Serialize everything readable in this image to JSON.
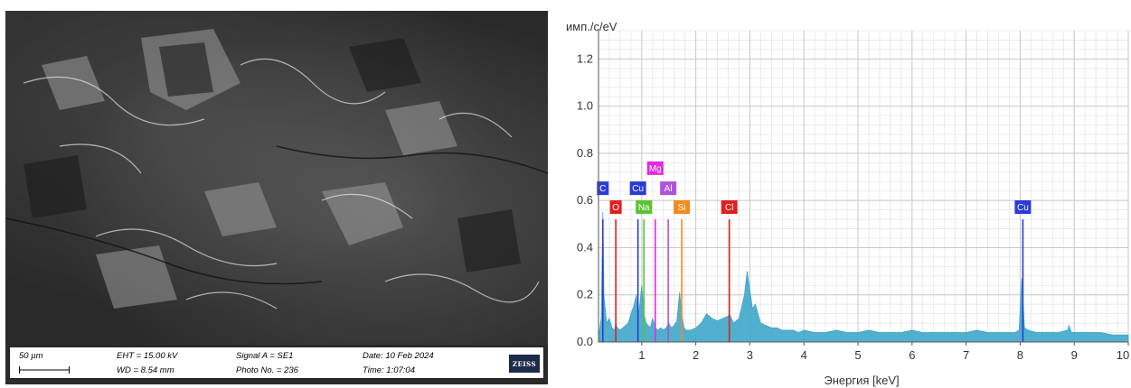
{
  "sem_panel": {
    "scale_label": "50 µm",
    "eht": "EHT = 15.00 kV",
    "wd": "WD = 8.54 mm",
    "signal": "Signal A = SE1",
    "photo_no": "Photo No. = 236",
    "date": "Date: 10 Feb 2024",
    "time": "Time: 1:07:04",
    "logo_text": "ZEISS"
  },
  "chart_data": {
    "type": "area",
    "ylabel": "имп./c/eV",
    "xlabel": "Энергия [keV]",
    "xlim": [
      0.2,
      10
    ],
    "ylim": [
      0,
      1.32
    ],
    "x_ticks": [
      1,
      2,
      3,
      4,
      5,
      6,
      7,
      8,
      9,
      10
    ],
    "x_tick_labels": [
      "1",
      "2",
      "3",
      "4",
      "5",
      "6",
      "7",
      "8",
      "9",
      "10"
    ],
    "y_ticks": [
      0.0,
      0.2,
      0.4,
      0.6,
      0.8,
      1.0,
      1.2
    ],
    "y_tick_labels": [
      "0.0",
      "0.2",
      "0.4",
      "0.6",
      "0.8",
      "1.0",
      "1.2"
    ],
    "grid": true,
    "spectrum_color": "#3fa7c9",
    "series": [
      {
        "x": [
          0.2,
          0.25,
          0.28,
          0.3,
          0.35,
          0.4,
          0.45,
          0.5,
          0.52,
          0.55,
          0.6,
          0.65,
          0.7,
          0.75,
          0.8,
          0.85,
          0.9,
          0.93,
          0.96,
          1.0,
          1.04,
          1.08,
          1.12,
          1.16,
          1.2,
          1.25,
          1.3,
          1.35,
          1.4,
          1.45,
          1.5,
          1.55,
          1.6,
          1.65,
          1.7,
          1.74,
          1.78,
          1.82,
          1.9,
          2.0,
          2.1,
          2.2,
          2.3,
          2.4,
          2.5,
          2.6,
          2.62,
          2.7,
          2.8,
          2.9,
          2.95,
          3.0,
          3.05,
          3.1,
          3.15,
          3.2,
          3.3,
          3.4,
          3.5,
          3.6,
          3.7,
          3.8,
          3.9,
          4.0,
          4.2,
          4.4,
          4.6,
          4.8,
          5.0,
          5.2,
          5.4,
          5.6,
          5.8,
          6.0,
          6.2,
          6.4,
          6.6,
          6.8,
          7.0,
          7.2,
          7.4,
          7.6,
          7.8,
          7.9,
          7.98,
          8.03,
          8.08,
          8.15,
          8.3,
          8.5,
          8.7,
          8.88,
          8.9,
          8.95,
          9.1,
          9.3,
          9.5,
          9.7,
          9.9,
          10.0
        ],
        "y": [
          0.02,
          0.1,
          0.55,
          0.2,
          0.08,
          0.1,
          0.06,
          0.05,
          0.08,
          0.06,
          0.05,
          0.06,
          0.07,
          0.08,
          0.12,
          0.15,
          0.2,
          0.1,
          0.15,
          0.24,
          0.12,
          0.08,
          0.07,
          0.06,
          0.1,
          0.06,
          0.05,
          0.06,
          0.05,
          0.06,
          0.08,
          0.06,
          0.07,
          0.09,
          0.21,
          0.12,
          0.06,
          0.05,
          0.05,
          0.06,
          0.08,
          0.12,
          0.1,
          0.09,
          0.1,
          0.11,
          0.12,
          0.08,
          0.1,
          0.2,
          0.3,
          0.22,
          0.14,
          0.16,
          0.12,
          0.08,
          0.07,
          0.06,
          0.06,
          0.05,
          0.05,
          0.05,
          0.04,
          0.05,
          0.04,
          0.04,
          0.05,
          0.04,
          0.04,
          0.05,
          0.04,
          0.04,
          0.04,
          0.05,
          0.04,
          0.04,
          0.04,
          0.04,
          0.04,
          0.05,
          0.04,
          0.04,
          0.04,
          0.04,
          0.05,
          0.27,
          0.06,
          0.05,
          0.04,
          0.04,
          0.04,
          0.05,
          0.07,
          0.04,
          0.04,
          0.04,
          0.04,
          0.03,
          0.03,
          0.03
        ]
      }
    ],
    "element_lines": [
      {
        "label": "C",
        "x": 0.28,
        "color": "#2b3bd6",
        "label_row": 2
      },
      {
        "label": "O",
        "x": 0.52,
        "color": "#e02020",
        "label_row": 1
      },
      {
        "label": "Cu",
        "x": 0.93,
        "color": "#2b3bd6",
        "label_row": 2
      },
      {
        "label": "Na",
        "x": 1.04,
        "color": "#5bc234",
        "label_row": 1
      },
      {
        "label": "Mg",
        "x": 1.25,
        "color": "#e02ae0",
        "label_row": 3
      },
      {
        "label": "Al",
        "x": 1.49,
        "color": "#b052e0",
        "label_row": 2
      },
      {
        "label": "Si",
        "x": 1.74,
        "color": "#f08c1e",
        "label_row": 1
      },
      {
        "label": "Cl",
        "x": 2.62,
        "color": "#e02020",
        "label_row": 1
      },
      {
        "label": "Cu",
        "x": 8.05,
        "color": "#2b3bd6",
        "label_row": 1
      }
    ],
    "element_line_height": 0.52
  }
}
